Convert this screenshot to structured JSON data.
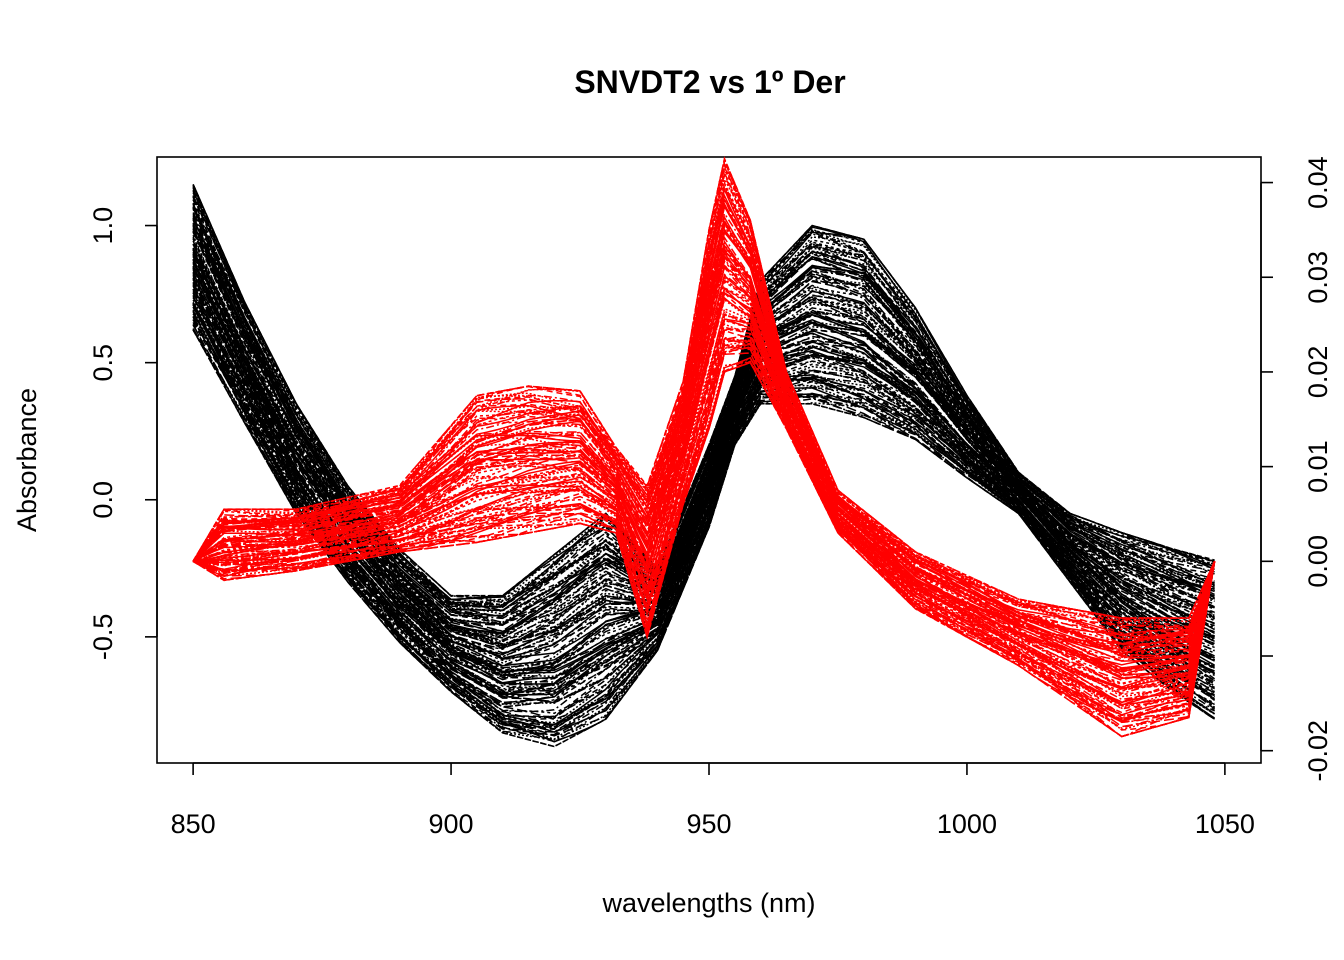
{
  "chart_data": {
    "type": "line",
    "title": "SNVDT2 vs 1º Der",
    "xlabel": "wavelengths (nm)",
    "ylabel": "Absorbance",
    "ylabel_right": "",
    "x_ticks": [
      "850",
      "900",
      "950",
      "1000",
      "1050"
    ],
    "y_ticks": [
      "-0.5",
      "0.0",
      "0.5",
      "1.0"
    ],
    "y2_ticks": [
      "-0.02",
      "",
      "0.00",
      "0.01",
      "0.02",
      "0.03",
      "0.04"
    ],
    "xlim": [
      843,
      1057
    ],
    "ylim": [
      -0.96,
      1.25
    ],
    "y2lim": [
      -0.0213,
      0.0427
    ],
    "grid": false,
    "colors": {
      "left_series": "#000000",
      "right_series": "#ff0000"
    },
    "series": [
      {
        "axis": "left",
        "color": "#000000",
        "x": [
          850,
          860,
          870,
          880,
          890,
          900,
          910,
          920,
          930,
          940,
          950,
          955,
          960,
          970,
          980,
          990,
          1000,
          1010,
          1020,
          1030,
          1040,
          1048
        ],
        "y_upper": [
          1.15,
          0.72,
          0.35,
          0.05,
          -0.18,
          -0.35,
          -0.35,
          -0.2,
          -0.05,
          -0.25,
          0.2,
          0.45,
          0.8,
          1.0,
          0.95,
          0.7,
          0.38,
          0.1,
          -0.05,
          -0.12,
          -0.18,
          -0.22
        ],
        "y_lower": [
          0.62,
          0.28,
          -0.05,
          -0.3,
          -0.52,
          -0.7,
          -0.85,
          -0.9,
          -0.8,
          -0.55,
          -0.1,
          0.2,
          0.35,
          0.35,
          0.3,
          0.22,
          0.08,
          -0.05,
          -0.3,
          -0.55,
          -0.7,
          -0.8
        ]
      },
      {
        "axis": "right",
        "color": "#ff0000",
        "x": [
          850,
          856,
          870,
          890,
          905,
          915,
          925,
          932,
          938,
          945,
          950,
          953,
          958,
          965,
          975,
          990,
          1010,
          1030,
          1043,
          1048
        ],
        "y_upper": [
          0.0,
          0.0055,
          0.0055,
          0.008,
          0.0175,
          0.0185,
          0.018,
          0.012,
          0.008,
          0.019,
          0.035,
          0.0425,
          0.036,
          0.02,
          0.0075,
          0.001,
          -0.004,
          -0.006,
          -0.006,
          0.0
        ],
        "y_lower": [
          0.0,
          -0.002,
          -0.001,
          0.001,
          0.002,
          0.003,
          0.004,
          0.003,
          -0.008,
          0.006,
          0.014,
          0.02,
          0.021,
          0.014,
          0.003,
          -0.005,
          -0.011,
          -0.0185,
          -0.0165,
          0.0
        ]
      }
    ]
  }
}
